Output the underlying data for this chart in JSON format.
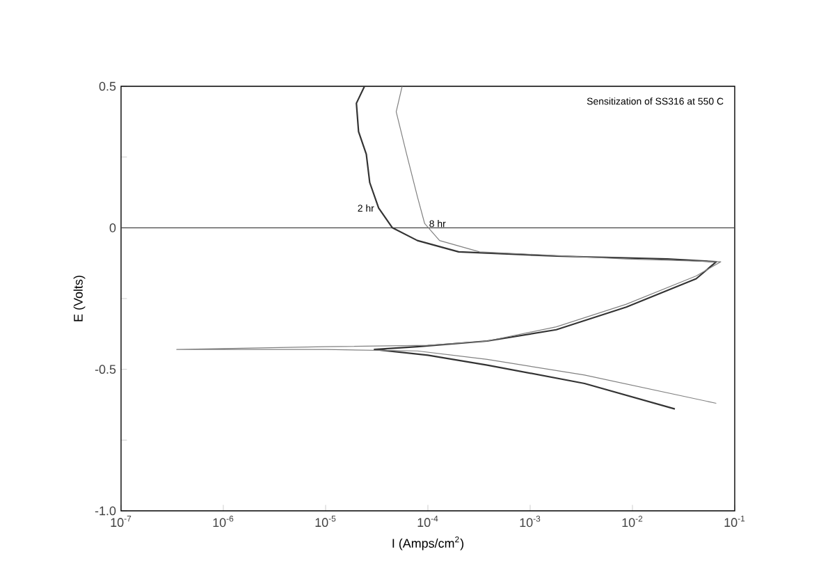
{
  "chart_data": {
    "type": "line",
    "title": "Sensitization of SS316 at 550 C",
    "xlabel": "I (Amps/cm$^{2}$)",
    "ylabel": "E (Volts)",
    "log": "x",
    "xlim": [
      1e-07,
      0.1
    ],
    "ylim": [
      -1.0,
      0.5
    ],
    "xticks": [
      {
        "value": 1e-07,
        "label": "10$^{-7}$"
      },
      {
        "value": 1e-06,
        "label": "10$^{-6}$"
      },
      {
        "value": 1e-05,
        "label": "10$^{-5}$"
      },
      {
        "value": 0.0001,
        "label": "10$^{-4}$"
      },
      {
        "value": 0.001,
        "label": "10$^{-3}$"
      },
      {
        "value": 0.01,
        "label": "10$^{-2}$"
      },
      {
        "value": 0.1,
        "label": "10$^{-1}$"
      }
    ],
    "yticks": [
      {
        "value": -1.0,
        "label": "-1.0"
      },
      {
        "value": -0.75,
        "label": null
      },
      {
        "value": -0.5,
        "label": "-0.5"
      },
      {
        "value": -0.25,
        "label": null
      },
      {
        "value": 0,
        "label": "0"
      },
      {
        "value": 0.25,
        "label": null
      },
      {
        "value": 0.5,
        "label": "0.5"
      }
    ],
    "ref_lines": [
      {
        "axis": "y",
        "value": 0
      }
    ],
    "series": [
      {
        "name": "2 hr",
        "color": "#333333",
        "x": [
          0.026,
          0.0034,
          0.00038,
          0.0001,
          3e-05,
          7.9e-05,
          0.00038,
          0.0018,
          0.0087,
          0.042,
          0.066,
          0.022,
          0.0018,
          0.0002,
          7.9e-05,
          4.5e-05,
          3.3e-05,
          2.7e-05,
          2.5e-05,
          2.1e-05,
          2e-05,
          2.4e-05
        ],
        "values": [
          -0.64,
          -0.55,
          -0.485,
          -0.45,
          -0.43,
          -0.42,
          -0.4,
          -0.36,
          -0.28,
          -0.18,
          -0.12,
          -0.11,
          -0.1,
          -0.085,
          -0.045,
          0.0,
          0.07,
          0.16,
          0.26,
          0.34,
          0.44,
          0.5
        ]
      },
      {
        "name": "8 hr",
        "color": "#808080",
        "x": [
          0.066,
          0.0034,
          0.00038,
          7.9e-05,
          1e-05,
          3.5e-07,
          1e-05,
          0.0001,
          0.00038,
          0.0018,
          0.0087,
          0.042,
          0.073,
          0.0087,
          0.00032,
          0.00013,
          9.3e-05,
          7.9e-05,
          6.2e-05,
          4.9e-05,
          5.6e-05
        ],
        "values": [
          -0.62,
          -0.52,
          -0.465,
          -0.435,
          -0.43,
          -0.43,
          -0.42,
          -0.415,
          -0.4,
          -0.35,
          -0.27,
          -0.17,
          -0.12,
          -0.11,
          -0.085,
          -0.045,
          0.015,
          0.11,
          0.26,
          0.41,
          0.5
        ]
      }
    ]
  }
}
